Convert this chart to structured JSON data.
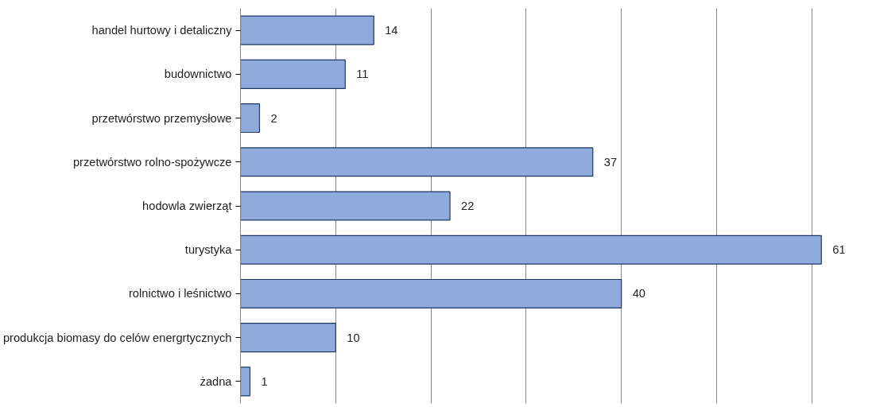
{
  "chart_data": {
    "type": "bar",
    "orientation": "horizontal",
    "categories": [
      "handel hurtowy i detaliczny",
      "budownictwo",
      "przetwórstwo przemysłowe",
      "przetwórstwo rolno-spożywcze",
      "hodowla zwierząt",
      "turystyka",
      "rolnictwo i leśnictwo",
      "produkcja biomasy do celów energrtycznych",
      "żadna"
    ],
    "values": [
      14,
      11,
      2,
      37,
      22,
      61,
      40,
      10,
      1
    ],
    "color": "#8faadc",
    "xticks": [
      {
        "value": 0,
        "label": null
      },
      {
        "value": 10,
        "label": null
      },
      {
        "value": 20,
        "label": null
      },
      {
        "value": 30,
        "label": null
      },
      {
        "value": 40,
        "label": null
      },
      {
        "value": 50,
        "label": null
      },
      {
        "value": 60,
        "label": null
      }
    ],
    "grid": "x",
    "tick_labels": "y",
    "data_labels": true
  }
}
